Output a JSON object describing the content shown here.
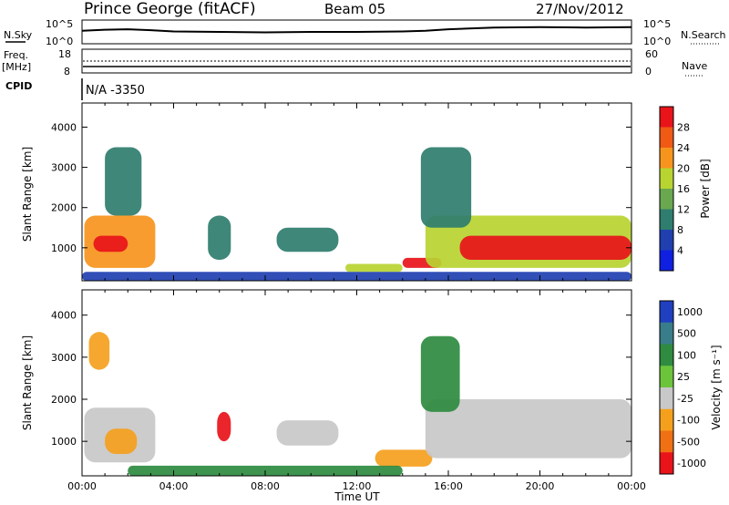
{
  "header": {
    "station": "Prince George (fitACF)",
    "beam": "Beam 05",
    "date": "27/Nov/2012"
  },
  "info_panels": {
    "nsky_label": "N.Sky",
    "nsearch_label": "N.Search",
    "noise_ticks": [
      "10^5",
      "10^0"
    ],
    "freq_label": "Freq.",
    "freq_unit": "[MHz]",
    "freq_ticks": [
      "18",
      "8"
    ],
    "nave_label": "Nave",
    "nave_ticks": [
      "60",
      "0"
    ],
    "cpid_label": "CPID",
    "cpid_value": "N/A -3350"
  },
  "power_colorbar": {
    "title": "Power [dB]",
    "ticks": [
      "28",
      "24",
      "20",
      "16",
      "12",
      "8",
      "4"
    ],
    "colors": [
      "#e8141a",
      "#f05a14",
      "#f7941d",
      "#b8d431",
      "#6aa84f",
      "#2e7d6e",
      "#2040b0",
      "#1020e0"
    ]
  },
  "velocity_colorbar": {
    "title": "Velocity [m s⁻¹]",
    "ticks": [
      "1000",
      "500",
      "100",
      "25",
      "-25",
      "-100",
      "-500",
      "-1000"
    ],
    "colors": [
      "#2040c0",
      "#3a7d8a",
      "#2e8b40",
      "#6bc43a",
      "#c8c8c8",
      "#f5a01d",
      "#f07014",
      "#e8141a"
    ]
  },
  "chart_data": [
    {
      "type": "line",
      "panel": "noise",
      "ylim_labels": [
        "10^0",
        "10^5"
      ],
      "series": [
        {
          "name": "N.Sky",
          "x": [
            0,
            1,
            2,
            3,
            4,
            6,
            8,
            10,
            12,
            14,
            15,
            16,
            18,
            20,
            22,
            24
          ],
          "y": [
            0.55,
            0.6,
            0.62,
            0.58,
            0.52,
            0.5,
            0.48,
            0.5,
            0.5,
            0.52,
            0.55,
            0.62,
            0.7,
            0.72,
            0.7,
            0.72
          ]
        },
        {
          "name": "N.Search",
          "x": [
            0,
            4,
            8,
            12,
            16,
            20,
            24
          ],
          "y": [
            0.5,
            0.5,
            0.5,
            0.5,
            0.5,
            0.5,
            0.5
          ]
        }
      ]
    },
    {
      "type": "line",
      "panel": "frequency",
      "series": [
        {
          "name": "Freq.",
          "x": [
            0,
            24
          ],
          "y": [
            11,
            11
          ]
        },
        {
          "name": "Nave",
          "x": [
            0,
            24
          ],
          "y": [
            22,
            22
          ]
        }
      ]
    },
    {
      "type": "heatmap",
      "panel": "power",
      "title": "",
      "xlabel": "",
      "ylabel": "Slant Range [km]",
      "xlim": [
        0,
        24
      ],
      "ylim": [
        180,
        4600
      ],
      "x_ticks": [
        0,
        4,
        8,
        12,
        16,
        20,
        24
      ],
      "y_ticks": [
        1000,
        2000,
        3000,
        4000
      ],
      "colorbar": "Power [dB]",
      "regions": [
        {
          "t0": 0.1,
          "t1": 3.2,
          "r0": 500,
          "r1": 1800,
          "value": 20
        },
        {
          "t0": 0.5,
          "t1": 2.0,
          "r0": 900,
          "r1": 1300,
          "value": 28
        },
        {
          "t0": 1.0,
          "t1": 2.6,
          "r0": 1800,
          "r1": 3500,
          "value": 8
        },
        {
          "t0": 5.5,
          "t1": 6.5,
          "r0": 700,
          "r1": 1800,
          "value": 8
        },
        {
          "t0": 8.5,
          "t1": 11.2,
          "r0": 900,
          "r1": 1500,
          "value": 8
        },
        {
          "t0": 11.5,
          "t1": 14.0,
          "r0": 400,
          "r1": 600,
          "value": 16
        },
        {
          "t0": 14.0,
          "t1": 15.7,
          "r0": 500,
          "r1": 750,
          "value": 28
        },
        {
          "t0": 15.0,
          "t1": 24.0,
          "r0": 500,
          "r1": 1800,
          "value": 16
        },
        {
          "t0": 16.5,
          "t1": 24.0,
          "r0": 700,
          "r1": 1300,
          "value": 28
        },
        {
          "t0": 14.8,
          "t1": 17.0,
          "r0": 1500,
          "r1": 3500,
          "value": 8
        },
        {
          "t0": 0.0,
          "t1": 24.0,
          "r0": 180,
          "r1": 400,
          "value": 4
        }
      ]
    },
    {
      "type": "heatmap",
      "panel": "velocity",
      "title": "",
      "xlabel": "Time UT",
      "ylabel": "Slant Range [km]",
      "xlim": [
        0,
        24
      ],
      "ylim": [
        180,
        4600
      ],
      "x_tick_labels": [
        "00:00",
        "04:00",
        "08:00",
        "12:00",
        "16:00",
        "20:00",
        "00:00"
      ],
      "y_ticks": [
        1000,
        2000,
        3000,
        4000
      ],
      "colorbar": "Velocity [m s⁻¹]",
      "regions": [
        {
          "t0": 0.1,
          "t1": 3.2,
          "r0": 500,
          "r1": 1800,
          "value": 0
        },
        {
          "t0": 1.0,
          "t1": 2.4,
          "r0": 700,
          "r1": 1300,
          "value": -100
        },
        {
          "t0": 0.3,
          "t1": 1.2,
          "r0": 2700,
          "r1": 3600,
          "value": -100
        },
        {
          "t0": 5.9,
          "t1": 6.5,
          "r0": 1000,
          "r1": 1700,
          "value": -1000
        },
        {
          "t0": 8.5,
          "t1": 11.2,
          "r0": 900,
          "r1": 1500,
          "value": 0
        },
        {
          "t0": 12.8,
          "t1": 15.3,
          "r0": 400,
          "r1": 800,
          "value": -100
        },
        {
          "t0": 15.0,
          "t1": 24.0,
          "r0": 600,
          "r1": 2000,
          "value": 0
        },
        {
          "t0": 14.8,
          "t1": 16.5,
          "r0": 1700,
          "r1": 3500,
          "value": 100
        },
        {
          "t0": 2.0,
          "t1": 14.0,
          "r0": 180,
          "r1": 420,
          "value": 100
        }
      ]
    }
  ]
}
